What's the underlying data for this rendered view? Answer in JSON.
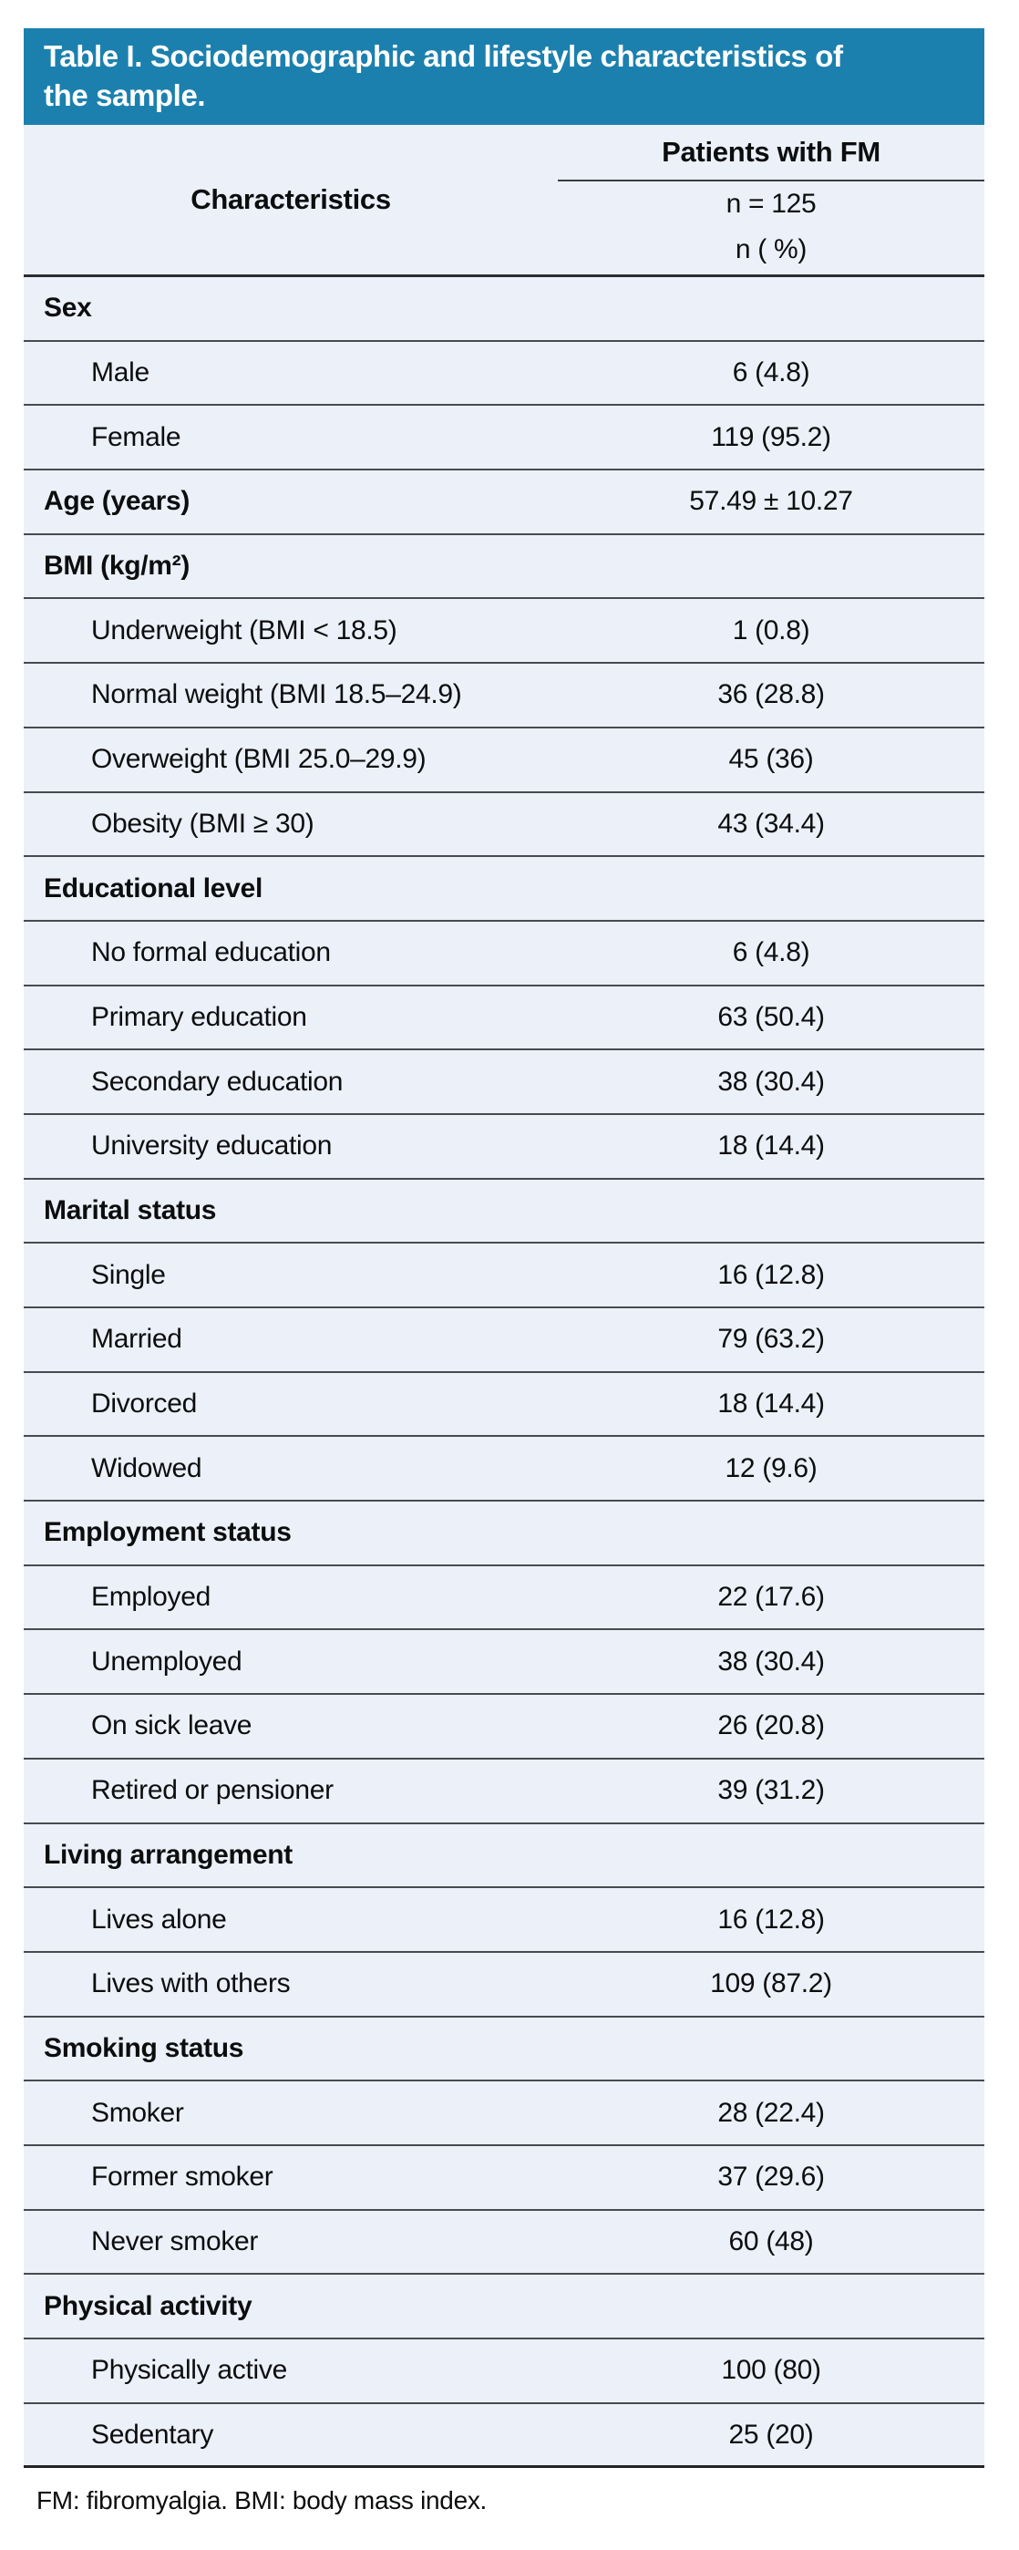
{
  "table": {
    "title_line1": "Table I. Sociodemographic and lifestyle characteristics of",
    "title_line2": "the sample.",
    "header": {
      "characteristics_label": "Characteristics",
      "group_label": "Patients with FM",
      "sample_size": "n = 125",
      "unit_label": "n ( %)"
    },
    "rows": [
      {
        "label": "Sex",
        "value": "",
        "kind": "section"
      },
      {
        "label": "Male",
        "value": "6 (4.8)",
        "kind": "item"
      },
      {
        "label": "Female",
        "value": "119 (95.2)",
        "kind": "item"
      },
      {
        "label": "Age (years)",
        "value": "57.49 ± 10.27",
        "kind": "section"
      },
      {
        "label": "BMI (kg/m²)",
        "value": "",
        "kind": "section"
      },
      {
        "label": "Underweight (BMI < 18.5)",
        "value": "1 (0.8)",
        "kind": "item"
      },
      {
        "label": "Normal weight (BMI 18.5–24.9)",
        "value": "36 (28.8)",
        "kind": "item"
      },
      {
        "label": "Overweight (BMI 25.0–29.9)",
        "value": "45 (36)",
        "kind": "item"
      },
      {
        "label": "Obesity (BMI ≥ 30)",
        "value": "43 (34.4)",
        "kind": "item"
      },
      {
        "label": "Educational level",
        "value": "",
        "kind": "section"
      },
      {
        "label": "No formal education",
        "value": "6 (4.8)",
        "kind": "item"
      },
      {
        "label": "Primary education",
        "value": "63 (50.4)",
        "kind": "item"
      },
      {
        "label": "Secondary education",
        "value": "38 (30.4)",
        "kind": "item"
      },
      {
        "label": "University education",
        "value": "18 (14.4)",
        "kind": "item"
      },
      {
        "label": "Marital status",
        "value": "",
        "kind": "section"
      },
      {
        "label": "Single",
        "value": "16 (12.8)",
        "kind": "item"
      },
      {
        "label": "Married",
        "value": "79 (63.2)",
        "kind": "item"
      },
      {
        "label": "Divorced",
        "value": "18 (14.4)",
        "kind": "item"
      },
      {
        "label": "Widowed",
        "value": "12 (9.6)",
        "kind": "item"
      },
      {
        "label": "Employment status",
        "value": "",
        "kind": "section"
      },
      {
        "label": "Employed",
        "value": "22 (17.6)",
        "kind": "item"
      },
      {
        "label": "Unemployed",
        "value": "38 (30.4)",
        "kind": "item"
      },
      {
        "label": "On sick leave",
        "value": "26 (20.8)",
        "kind": "item"
      },
      {
        "label": "Retired or pensioner",
        "value": "39 (31.2)",
        "kind": "item"
      },
      {
        "label": "Living arrangement",
        "value": "",
        "kind": "section"
      },
      {
        "label": "Lives alone",
        "value": "16 (12.8)",
        "kind": "item"
      },
      {
        "label": "Lives with others",
        "value": "109 (87.2)",
        "kind": "item"
      },
      {
        "label": "Smoking status",
        "value": "",
        "kind": "section"
      },
      {
        "label": "Smoker",
        "value": "28 (22.4)",
        "kind": "item"
      },
      {
        "label": "Former smoker",
        "value": "37 (29.6)",
        "kind": "item"
      },
      {
        "label": "Never smoker",
        "value": "60 (48)",
        "kind": "item"
      },
      {
        "label": "Physical activity",
        "value": "",
        "kind": "section"
      },
      {
        "label": "Physically active",
        "value": "100 (80)",
        "kind": "item"
      },
      {
        "label": "Sedentary",
        "value": "25 (20)",
        "kind": "item"
      }
    ],
    "footnote": "FM: fibromyalgia. BMI: body mass index.",
    "colors": {
      "title_bar_bg": "#1c80ae",
      "row_bg": "#ecf0f8",
      "rule": "#474b50",
      "heavy_rule": "#2a2d31",
      "title_text": "#ffffff"
    }
  }
}
